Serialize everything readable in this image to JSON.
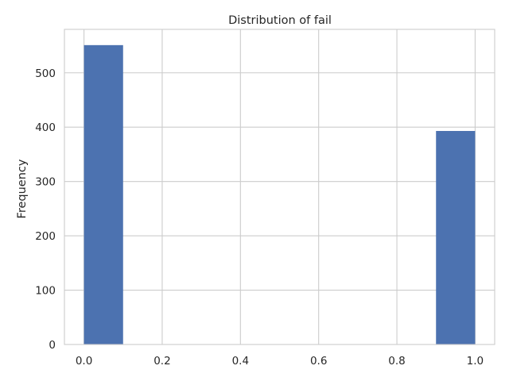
{
  "chart_data": {
    "type": "bar",
    "title": "Distribution of fail",
    "xlabel": "",
    "ylabel": "Frequency",
    "xlim": [
      -0.05,
      1.05
    ],
    "ylim": [
      0,
      580
    ],
    "x_ticks": [
      0.0,
      0.2,
      0.4,
      0.6,
      0.8,
      1.0
    ],
    "x_tick_labels": [
      "0.0",
      "0.2",
      "0.4",
      "0.6",
      "0.8",
      "1.0"
    ],
    "y_ticks": [
      0,
      100,
      200,
      300,
      400,
      500
    ],
    "y_tick_labels": [
      "0",
      "100",
      "200",
      "300",
      "400",
      "500"
    ],
    "bins": [
      {
        "start": 0.0,
        "end": 0.1,
        "value": 551
      },
      {
        "start": 0.1,
        "end": 0.2,
        "value": 0
      },
      {
        "start": 0.2,
        "end": 0.3,
        "value": 0
      },
      {
        "start": 0.3,
        "end": 0.4,
        "value": 0
      },
      {
        "start": 0.4,
        "end": 0.5,
        "value": 0
      },
      {
        "start": 0.5,
        "end": 0.6,
        "value": 0
      },
      {
        "start": 0.6,
        "end": 0.7,
        "value": 0
      },
      {
        "start": 0.7,
        "end": 0.8,
        "value": 0
      },
      {
        "start": 0.8,
        "end": 0.9,
        "value": 0
      },
      {
        "start": 0.9,
        "end": 1.0,
        "value": 393
      }
    ],
    "grid": true,
    "bar_color": "#4c72b0",
    "grid_color": "#cccccc"
  }
}
